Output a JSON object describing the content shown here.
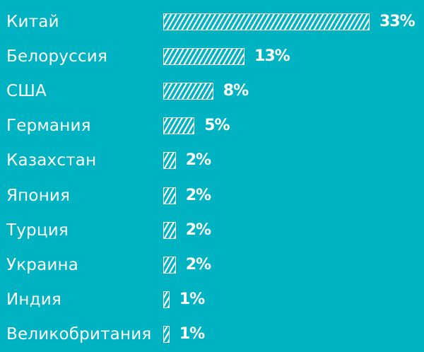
{
  "chart_data": {
    "type": "bar",
    "orientation": "horizontal",
    "categories": [
      "Китай",
      "Белоруссия",
      "США",
      "Германия",
      "Казахстан",
      "Япония",
      "Турция",
      "Украина",
      "Индия",
      "Великобритания"
    ],
    "values": [
      33,
      13,
      8,
      5,
      2,
      2,
      2,
      2,
      1,
      1
    ],
    "value_labels": [
      "33%",
      "13%",
      "8%",
      "5%",
      "2%",
      "2%",
      "2%",
      "2%",
      "1%",
      "1%"
    ],
    "value_unit": "%",
    "title": "",
    "xlabel": "",
    "ylabel": "",
    "xlim": [
      0,
      33
    ],
    "grid": false,
    "legend": "none",
    "colors": {
      "background": "#00B3C3",
      "bar_fill": "#ffffff",
      "bar_hatch": "diagonal-stripes",
      "text": "#ffffff"
    }
  }
}
